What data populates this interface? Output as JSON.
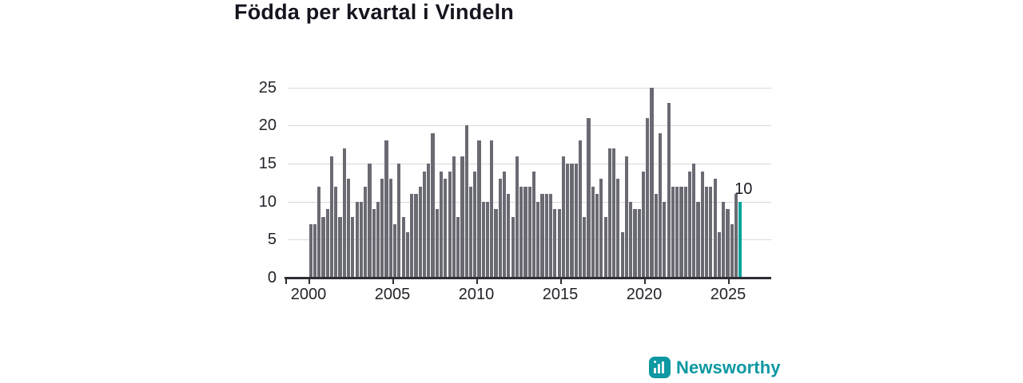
{
  "title": "Födda per kvartal i Vindeln",
  "colors": {
    "bar": "#6a6a73",
    "highlight": "#00a49b",
    "gridline": "#d9d9d9",
    "axis": "#2e2e34",
    "title_text": "#15151f",
    "tick_text": "#23232b",
    "logo_teal": "#0d98a2"
  },
  "logo": {
    "text": "Newsworthy"
  },
  "chart_data": {
    "type": "bar",
    "title": "Födda per kvartal i Vindeln",
    "xlabel": "",
    "ylabel": "",
    "start_quarter": "2000 Q1",
    "end_quarter": "2025 Q3",
    "ylim": [
      0,
      25
    ],
    "y_ticks": [
      0,
      5,
      10,
      15,
      20,
      25
    ],
    "x_ticks": [
      2000,
      2005,
      2010,
      2015,
      2020,
      2025
    ],
    "grid": true,
    "highlight_last": true,
    "highlight_label": "10",
    "values": [
      7,
      7,
      12,
      8,
      9,
      16,
      12,
      8,
      17,
      13,
      8,
      10,
      10,
      12,
      15,
      9,
      10,
      13,
      18,
      13,
      7,
      15,
      8,
      6,
      11,
      11,
      12,
      14,
      15,
      19,
      9,
      14,
      13,
      14,
      16,
      8,
      16,
      20,
      12,
      14,
      18,
      10,
      10,
      18,
      9,
      13,
      14,
      11,
      8,
      16,
      12,
      12,
      12,
      14,
      10,
      11,
      11,
      11,
      9,
      9,
      16,
      15,
      15,
      15,
      18,
      8,
      21,
      12,
      11,
      13,
      8,
      17,
      17,
      13,
      6,
      16,
      10,
      9,
      9,
      14,
      21,
      25,
      11,
      19,
      10,
      23,
      12,
      12,
      12,
      12,
      14,
      15,
      10,
      14,
      12,
      12,
      13,
      6,
      10,
      9,
      7,
      11,
      10
    ]
  }
}
